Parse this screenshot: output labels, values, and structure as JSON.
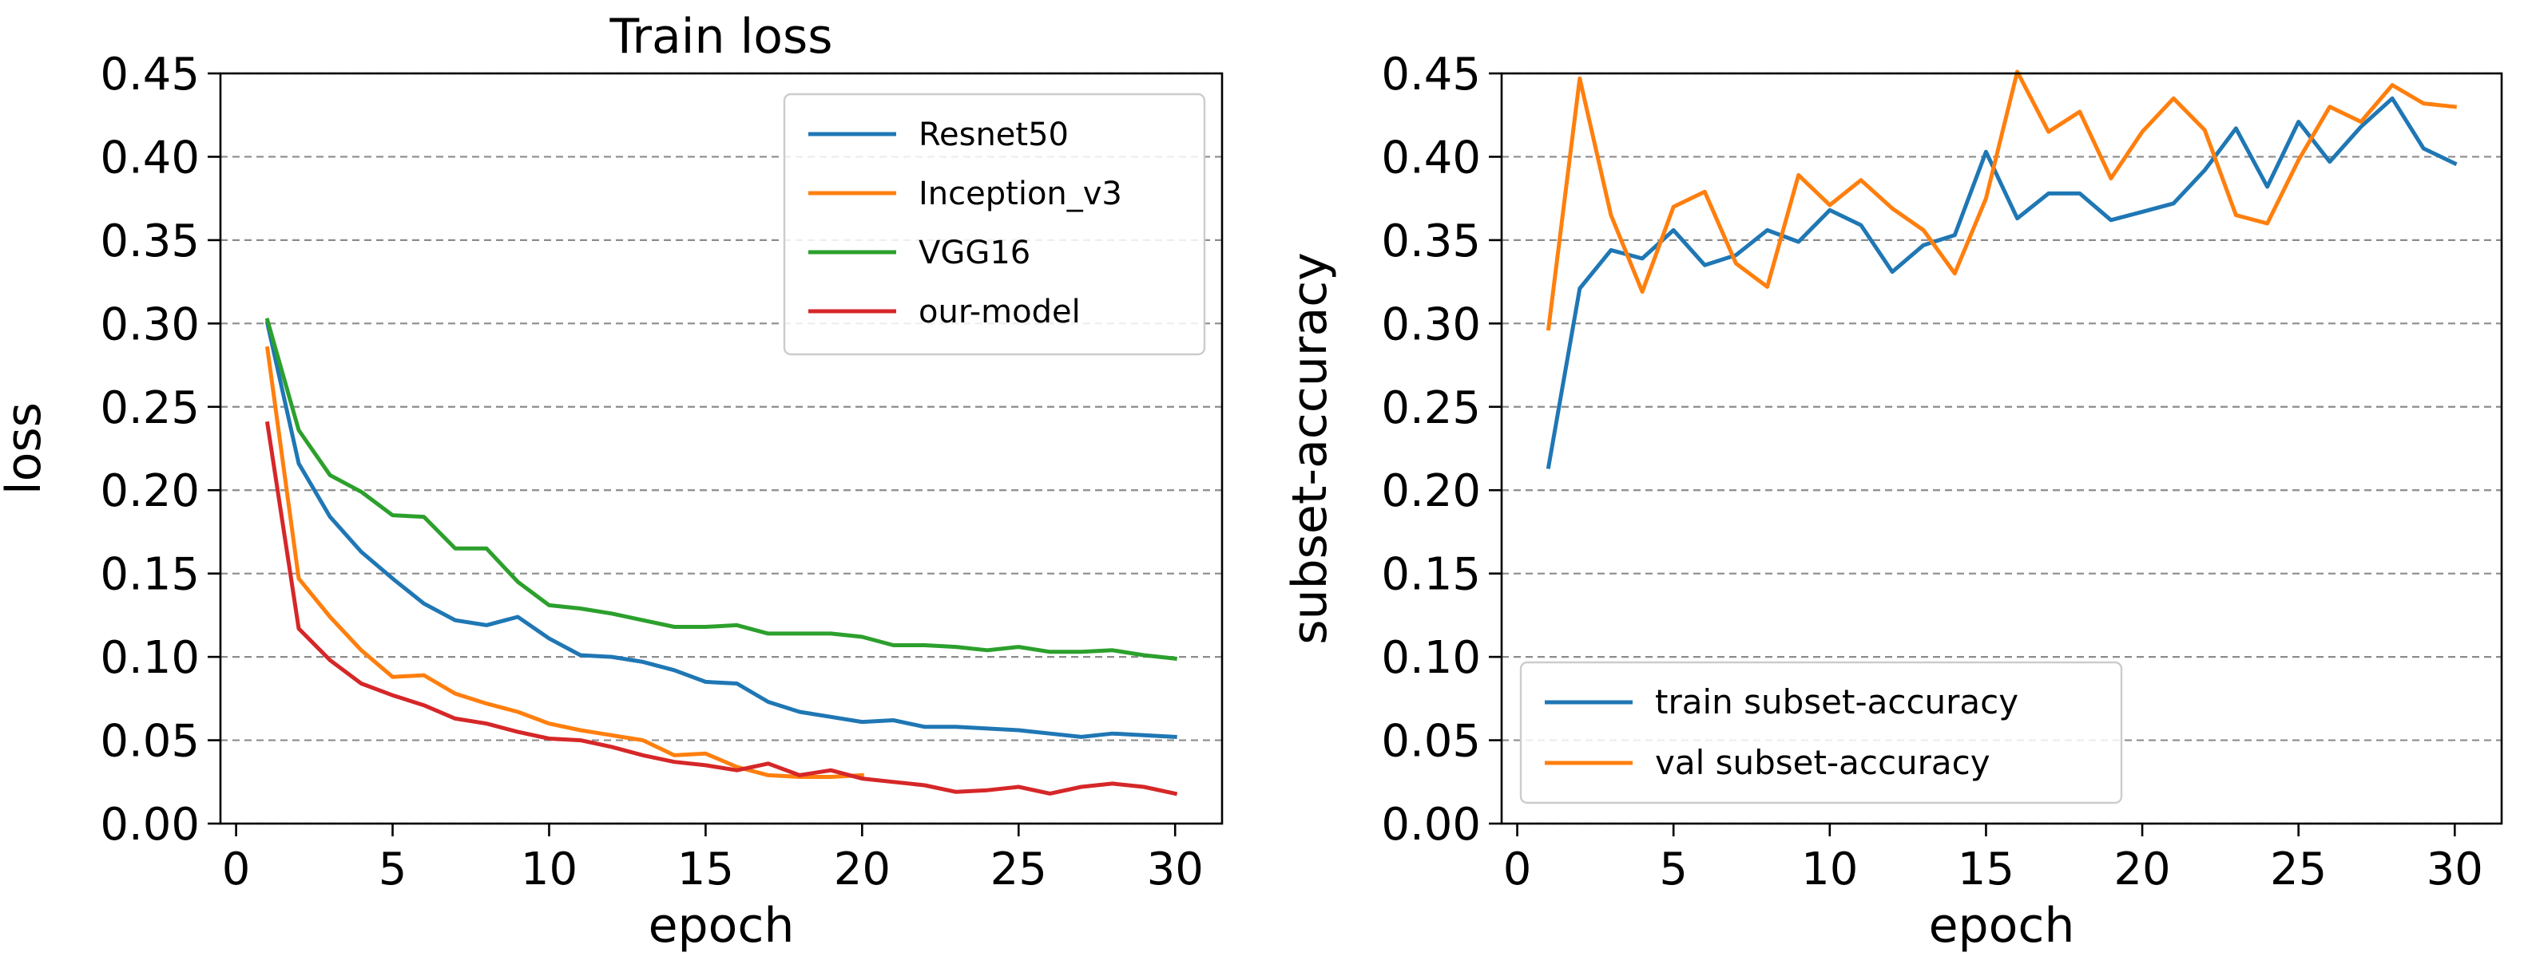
{
  "chart_data": [
    {
      "type": "line",
      "title": "Train loss",
      "xlabel": "epoch",
      "ylabel": "loss",
      "xlim": [
        -0.5,
        31.5
      ],
      "ylim": [
        0.0,
        0.45
      ],
      "xticks": [
        0,
        5,
        10,
        15,
        20,
        25,
        30
      ],
      "yticks": [
        0.0,
        0.05,
        0.1,
        0.15,
        0.2,
        0.25,
        0.3,
        0.35,
        0.4,
        0.45
      ],
      "ytick_labels": [
        "0.00",
        "0.05",
        "0.10",
        "0.15",
        "0.20",
        "0.25",
        "0.30",
        "0.35",
        "0.40",
        "0.45"
      ],
      "grid": "y-dashed",
      "legend_position": "upper-right",
      "x": [
        1,
        2,
        3,
        4,
        5,
        6,
        7,
        8,
        9,
        10,
        11,
        12,
        13,
        14,
        15,
        16,
        17,
        18,
        19,
        20,
        21,
        22,
        23,
        24,
        25,
        26,
        27,
        28,
        29,
        30
      ],
      "series": [
        {
          "name": "Resnet50",
          "color": "#1f77b4",
          "values": [
            0.3,
            0.216,
            0.184,
            0.163,
            0.147,
            0.132,
            0.122,
            0.119,
            0.124,
            0.111,
            0.101,
            0.1,
            0.097,
            0.092,
            0.085,
            0.084,
            0.073,
            0.067,
            0.064,
            0.061,
            0.062,
            0.058,
            0.058,
            0.057,
            0.056,
            0.054,
            0.052,
            0.054,
            0.053,
            0.052
          ]
        },
        {
          "name": "Inception_v3",
          "color": "#ff7f0e",
          "values": [
            0.285,
            0.147,
            0.124,
            0.104,
            0.088,
            0.089,
            0.078,
            0.072,
            0.067,
            0.06,
            0.056,
            0.053,
            0.05,
            0.041,
            0.042,
            0.034,
            0.029,
            0.028,
            0.028,
            0.029,
            null,
            null,
            null,
            null,
            null,
            null,
            null,
            null,
            null,
            null
          ]
        },
        {
          "name": "VGG16",
          "color": "#2ca02c",
          "values": [
            0.302,
            0.236,
            0.209,
            0.199,
            0.185,
            0.184,
            0.165,
            0.165,
            0.145,
            0.131,
            0.129,
            0.126,
            0.122,
            0.118,
            0.118,
            0.119,
            0.114,
            0.114,
            0.114,
            0.112,
            0.107,
            0.107,
            0.106,
            0.104,
            0.106,
            0.103,
            0.103,
            0.104,
            0.101,
            0.099
          ]
        },
        {
          "name": "our-model",
          "color": "#d62728",
          "values": [
            0.24,
            0.117,
            0.098,
            0.084,
            0.077,
            0.071,
            0.063,
            0.06,
            0.055,
            0.051,
            0.05,
            0.046,
            0.041,
            0.037,
            0.035,
            0.032,
            0.036,
            0.029,
            0.032,
            0.027,
            0.025,
            0.023,
            0.019,
            0.02,
            0.022,
            0.018,
            0.022,
            0.024,
            0.022,
            0.018
          ]
        }
      ]
    },
    {
      "type": "line",
      "title": "",
      "xlabel": "epoch",
      "ylabel": "subset-accuracy",
      "xlim": [
        -0.5,
        31.5
      ],
      "ylim": [
        0.0,
        0.45
      ],
      "xticks": [
        0,
        5,
        10,
        15,
        20,
        25,
        30
      ],
      "yticks": [
        0.0,
        0.05,
        0.1,
        0.15,
        0.2,
        0.25,
        0.3,
        0.35,
        0.4,
        0.45
      ],
      "ytick_labels": [
        "0.00",
        "0.05",
        "0.10",
        "0.15",
        "0.20",
        "0.25",
        "0.30",
        "0.35",
        "0.40",
        "0.45"
      ],
      "grid": "y-dashed",
      "legend_position": "lower-left",
      "x": [
        1,
        2,
        3,
        4,
        5,
        6,
        7,
        8,
        9,
        10,
        11,
        12,
        13,
        14,
        15,
        16,
        17,
        18,
        19,
        20,
        21,
        22,
        23,
        24,
        25,
        26,
        27,
        28,
        29,
        30
      ],
      "series": [
        {
          "name": "train subset-accuracy",
          "color": "#1f77b4",
          "values": [
            0.214,
            0.321,
            0.344,
            0.339,
            0.356,
            0.335,
            0.341,
            0.356,
            0.349,
            0.368,
            0.359,
            0.331,
            0.347,
            0.353,
            0.403,
            0.363,
            0.378,
            0.378,
            0.362,
            0.367,
            0.372,
            0.392,
            0.417,
            0.382,
            0.421,
            0.397,
            0.418,
            0.435,
            0.405,
            0.396
          ]
        },
        {
          "name": "val subset-accuracy",
          "color": "#ff7f0e",
          "values": [
            0.297,
            0.447,
            0.365,
            0.319,
            0.37,
            0.379,
            0.336,
            0.322,
            0.389,
            0.371,
            0.386,
            0.369,
            0.356,
            0.33,
            0.375,
            0.451,
            0.415,
            0.427,
            0.387,
            0.415,
            0.435,
            0.416,
            0.365,
            0.36,
            0.398,
            0.43,
            0.421,
            0.443,
            0.432,
            0.43
          ]
        }
      ]
    }
  ]
}
